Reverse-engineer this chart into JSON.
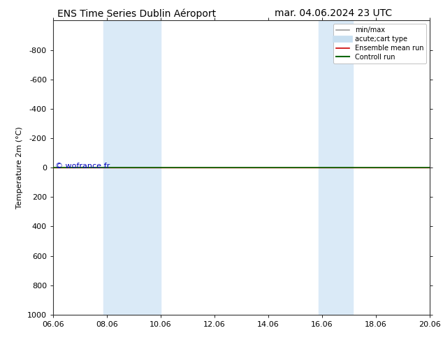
{
  "title_left": "ENS Time Series Dublin Aéroport",
  "title_right": "mar. 04.06.2024 23 UTC",
  "ylabel": "Temperature 2m (°C)",
  "watermark": "© wofrance.fr",
  "ylim_top": -1000,
  "ylim_bottom": 1000,
  "yticks": [
    -800,
    -600,
    -400,
    -200,
    0,
    200,
    400,
    600,
    800,
    1000
  ],
  "xtick_labels": [
    "06.06",
    "08.06",
    "10.06",
    "12.06",
    "14.06",
    "16.06",
    "18.06",
    "20.06"
  ],
  "xtick_positions": [
    0,
    2,
    4,
    6,
    8,
    10,
    12,
    14
  ],
  "xlim": [
    0,
    14
  ],
  "shaded_regions": [
    [
      1.87,
      2.6
    ],
    [
      2.6,
      4.0
    ],
    [
      9.87,
      10.6
    ],
    [
      10.6,
      11.13
    ]
  ],
  "shaded_color": "#daeaf7",
  "hline_y": 0,
  "hline_color_ensemble": "#cc0000",
  "hline_color_control": "#006600",
  "hline_lw_ensemble": 1.0,
  "hline_lw_control": 1.2,
  "legend_items": [
    {
      "label": "min/max",
      "color": "#999999",
      "lw": 1.2,
      "ls": "-"
    },
    {
      "label": "acute;cart type",
      "color": "#c8dff0",
      "lw": 7,
      "ls": "-"
    },
    {
      "label": "Ensemble mean run",
      "color": "#cc0000",
      "lw": 1.2,
      "ls": "-"
    },
    {
      "label": "Controll run",
      "color": "#006600",
      "lw": 1.5,
      "ls": "-"
    }
  ],
  "bg_color": "#ffffff",
  "watermark_color": "#0000bb",
  "title_fontsize": 10,
  "axis_fontsize": 8,
  "tick_fontsize": 8,
  "legend_fontsize": 7,
  "watermark_fontsize": 8
}
